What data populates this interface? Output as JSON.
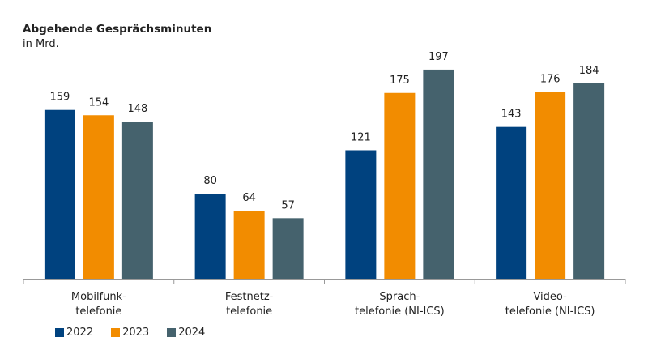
{
  "chart_data": {
    "type": "bar",
    "title": "Abgehende Gesprächsminuten",
    "subtitle": "in Mrd.",
    "categories": [
      [
        "Mobilfunk-",
        "telefonie"
      ],
      [
        "Festnetz-",
        "telefonie"
      ],
      [
        "Sprach-",
        "telefonie (NI-ICS)"
      ],
      [
        "Video-",
        "telefonie (NI-ICS)"
      ]
    ],
    "series": [
      {
        "name": "2022",
        "color": "#00427f",
        "values": [
          159,
          80,
          121,
          143
        ]
      },
      {
        "name": "2023",
        "color": "#f28c00",
        "values": [
          154,
          64,
          175,
          176
        ]
      },
      {
        "name": "2024",
        "color": "#45626d",
        "values": [
          148,
          57,
          197,
          184
        ]
      }
    ],
    "ylim": [
      0,
      200
    ],
    "grid": false,
    "data_labels": true,
    "legend": "bottom-left"
  }
}
